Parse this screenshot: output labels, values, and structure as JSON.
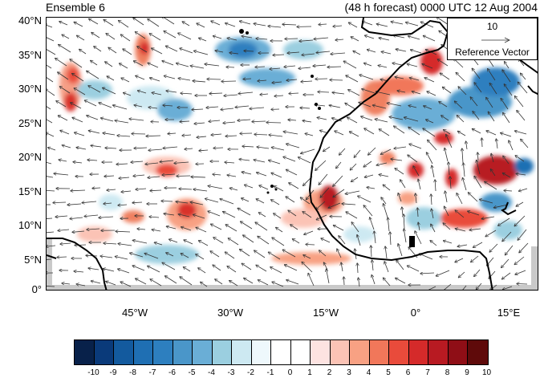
{
  "title": {
    "left": "Ensemble 6",
    "right": "(48 h forecast) 0000 UTC 12 Aug 2004"
  },
  "latitudes": [
    "40°N",
    "35°N",
    "30°N",
    "25°N",
    "20°N",
    "15°N",
    "10°N",
    "5°N",
    "0°"
  ],
  "longitudes": [
    "45°W",
    "30°W",
    "15°W",
    "0°",
    "15°E"
  ],
  "reference_vector": {
    "magnitude": "10",
    "label": "Reference Vector"
  },
  "colorbar": {
    "labels": [
      "-10",
      "-9",
      "-8",
      "-7",
      "-6",
      "-5",
      "-4",
      "-3",
      "-2",
      "-1",
      "0",
      "1",
      "2",
      "3",
      "4",
      "5",
      "6",
      "7",
      "8",
      "9",
      "10"
    ],
    "colors": [
      "#08214a",
      "#0a3a7a",
      "#135a9e",
      "#1f6fb3",
      "#2d7fbf",
      "#4a96c9",
      "#6aaed6",
      "#9bcfe0",
      "#cde9f2",
      "#eef8fc",
      "#ffffff",
      "#ffffff",
      "#fde3e1",
      "#fbc3b5",
      "#f8a183",
      "#f1775a",
      "#e94b3b",
      "#d52a2a",
      "#b81a22",
      "#8f0e16",
      "#5f0a0a"
    ]
  },
  "colors": {
    "land_outline": "#000000",
    "missing_gray": "#c9c9c9"
  }
}
